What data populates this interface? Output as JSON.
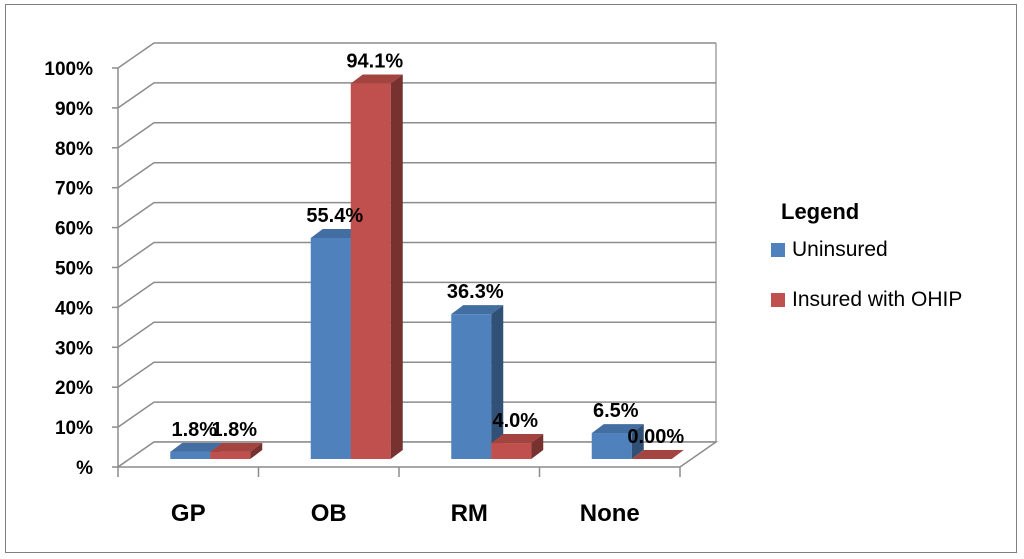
{
  "chart_data": {
    "type": "bar",
    "title": "",
    "xlabel": "",
    "ylabel": "",
    "categories": [
      "GP",
      "OB",
      "RM",
      "None"
    ],
    "series": [
      {
        "name": "Uninsured",
        "values": [
          1.8,
          55.4,
          36.3,
          6.5
        ],
        "labels": [
          "1.8%",
          "55.4%",
          "36.3%",
          "6.5%"
        ],
        "color": "#4f81bd"
      },
      {
        "name": "Insured with OHIP",
        "values": [
          1.8,
          94.1,
          4.0,
          0.0
        ],
        "labels": [
          "1.8%",
          "94.1%",
          "4.0%",
          "0.00%"
        ],
        "color": "#c0504d"
      }
    ],
    "ylim": [
      0,
      100
    ],
    "yticks": [
      "%",
      "10%",
      "20%",
      "30%",
      "40%",
      "50%",
      "60%",
      "70%",
      "80%",
      "90%",
      "100%"
    ],
    "grid": true,
    "legend": {
      "title": "Legend",
      "placement": "right"
    }
  }
}
